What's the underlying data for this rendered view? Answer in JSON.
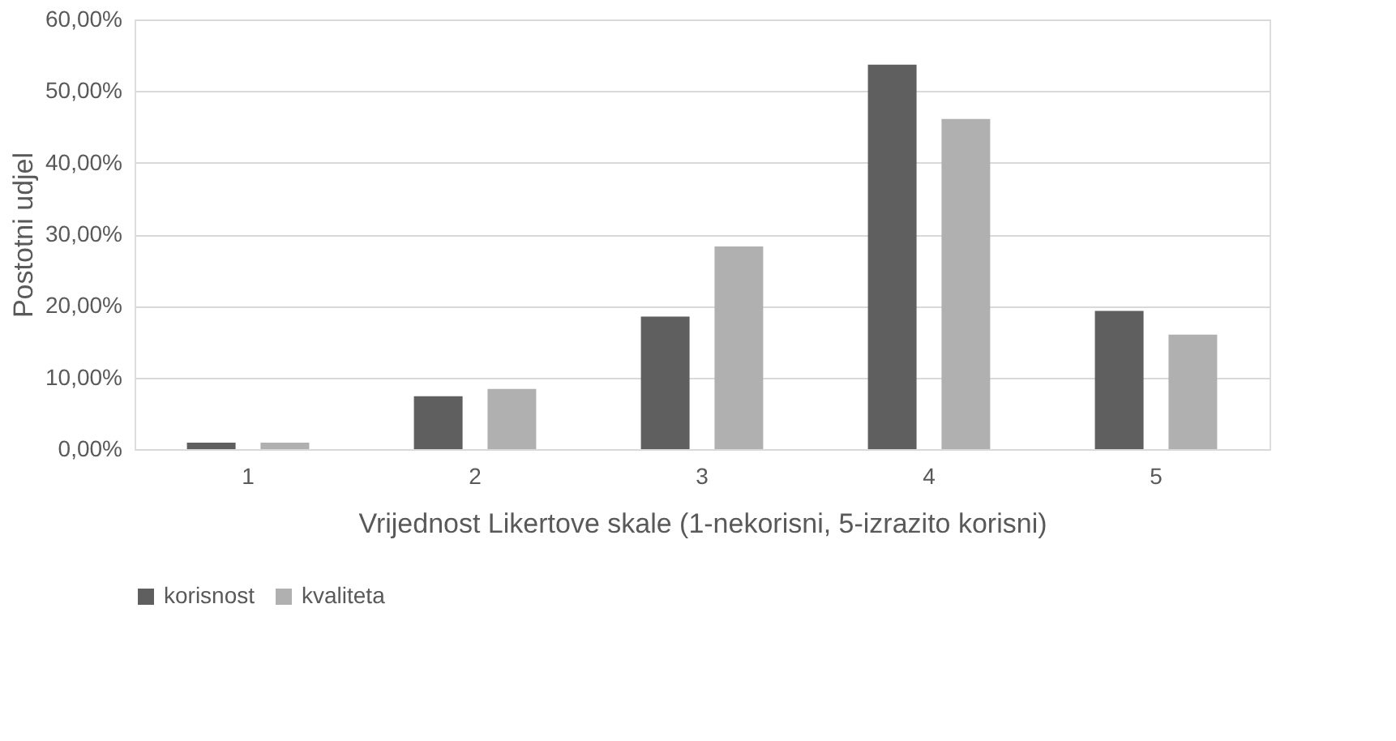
{
  "chart_data": {
    "type": "bar",
    "xlabel": "Vrijednost Likertove skale (1-nekorisni, 5-izrazito korisni)",
    "ylabel": "Postotni udjel",
    "categories": [
      "1",
      "2",
      "3",
      "4",
      "5"
    ],
    "series": [
      {
        "name": "korisnost",
        "color": "#5f5f5f",
        "values": [
          0.9,
          7.4,
          18.5,
          53.7,
          19.3
        ]
      },
      {
        "name": "kvaliteta",
        "color": "#b0b0b0",
        "values": [
          0.9,
          8.4,
          28.3,
          46.1,
          16.0
        ]
      }
    ],
    "ylim": [
      0,
      60
    ],
    "yticks": [
      {
        "value": 0,
        "label": "0,00%"
      },
      {
        "value": 10,
        "label": "10,00%"
      },
      {
        "value": 20,
        "label": "20,00%"
      },
      {
        "value": 30,
        "label": "30,00%"
      },
      {
        "value": 40,
        "label": "40,00%"
      },
      {
        "value": 50,
        "label": "50,00%"
      },
      {
        "value": 60,
        "label": "60,00%"
      }
    ],
    "grid": "y",
    "legend": "bottom"
  }
}
